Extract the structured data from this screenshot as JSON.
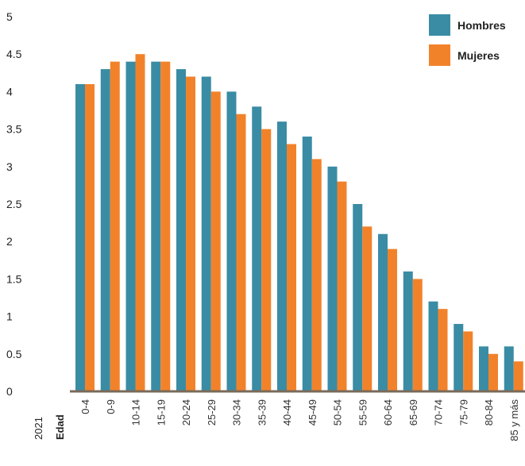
{
  "chart_data": {
    "type": "bar",
    "title": "",
    "xlabel": "Edad",
    "ylabel": "",
    "corner_label": "2021",
    "ylim": [
      0,
      5
    ],
    "yticks": [
      "0",
      "0.5",
      "1",
      "1.5",
      "2",
      "2.5",
      "3",
      "3.5",
      "4",
      "4.5",
      "5"
    ],
    "grid": false,
    "legend_position": "top-right",
    "categories": [
      "0-4",
      "0-9",
      "10-14",
      "15-19",
      "20-24",
      "25-29",
      "30-34",
      "35-39",
      "40-44",
      "45-49",
      "50-54",
      "55-59",
      "60-64",
      "65-69",
      "70-74",
      "75-79",
      "80-84",
      "85 y más"
    ],
    "series": [
      {
        "name": "Hombres",
        "color": "#3a8ca4",
        "values": [
          4.1,
          4.3,
          4.4,
          4.4,
          4.3,
          4.2,
          4.0,
          3.8,
          3.6,
          3.4,
          3.0,
          2.5,
          2.1,
          1.6,
          1.2,
          0.9,
          0.6,
          0.6
        ]
      },
      {
        "name": "Mujeres",
        "color": "#f2822a",
        "values": [
          4.1,
          4.4,
          4.5,
          4.4,
          4.2,
          4.0,
          3.7,
          3.5,
          3.3,
          3.1,
          2.8,
          2.2,
          1.9,
          1.5,
          1.1,
          0.8,
          0.5,
          0.4
        ]
      }
    ],
    "axis_color": "#7a6a5a"
  }
}
